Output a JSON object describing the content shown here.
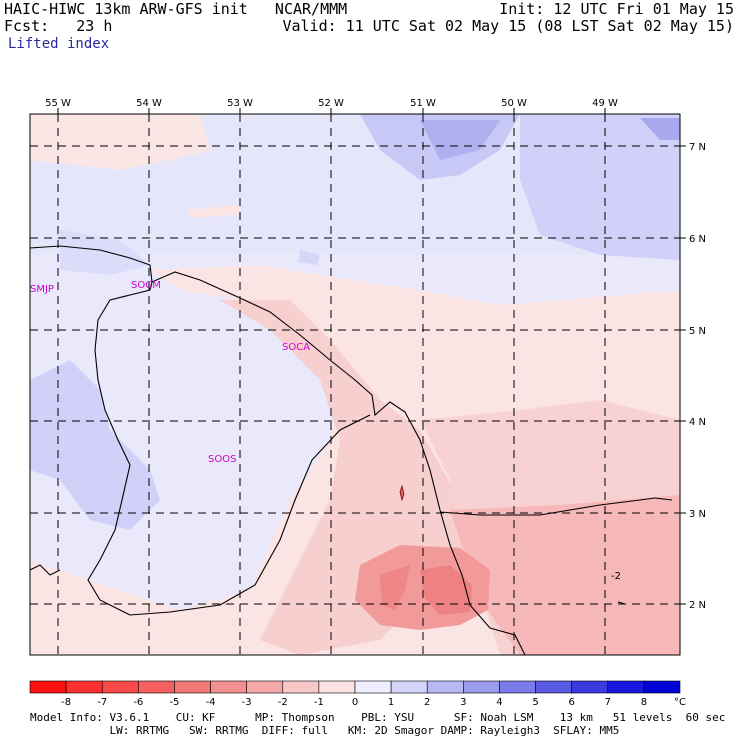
{
  "header": {
    "left1": "HAIC-HIWC 13km ARW-GFS init   NCAR/MMM",
    "left2": "Fcst:   23 h",
    "subtitle": "Lifted index",
    "right1": "Init: 12 UTC Fri 01 May 15",
    "right2": "Valid: 11 UTC Sat 02 May 15 (08 LST Sat 02 May 15)"
  },
  "map": {
    "lon_labels": [
      "55 W",
      "54 W",
      "53 W",
      "52 W",
      "51 W",
      "50 W",
      "49 W"
    ],
    "lat_labels": [
      "7 N",
      "6 N",
      "5 N",
      "4 N",
      "3 N",
      "2 N"
    ],
    "stations": [
      "SMJP",
      "SOCM",
      "SOCA",
      "SOOS"
    ],
    "contour_label": "-2"
  },
  "colorbar": {
    "labels": [
      "-8",
      "-7",
      "-6",
      "-5",
      "-4",
      "-3",
      "-2",
      "-1",
      "0",
      "1",
      "2",
      "3",
      "4",
      "5",
      "6",
      "7",
      "8"
    ],
    "unit": "°C",
    "colors": [
      "#ff1010",
      "#ff3030",
      "#f84848",
      "#f46060",
      "#f27878",
      "#f29090",
      "#f5a8a8",
      "#f8c8c8",
      "#fce4e4",
      "#eeeeff",
      "#d4d4fa",
      "#b8b8f4",
      "#9a9aee",
      "#7a7ae8",
      "#5a5ae4",
      "#3a3ae0",
      "#1818e0",
      "#0000d8"
    ]
  },
  "footer": {
    "line1": "Model Info: V3.6.1    CU: KF      MP: Thompson    PBL: YSU      SF: Noah LSM    13 km   51 levels  60 sec",
    "line2": "            LW: RRTMG   SW: RRTMG  DIFF: full   KM: 2D Smagor DAMP: Rayleigh3  SFLAY: MM5"
  }
}
